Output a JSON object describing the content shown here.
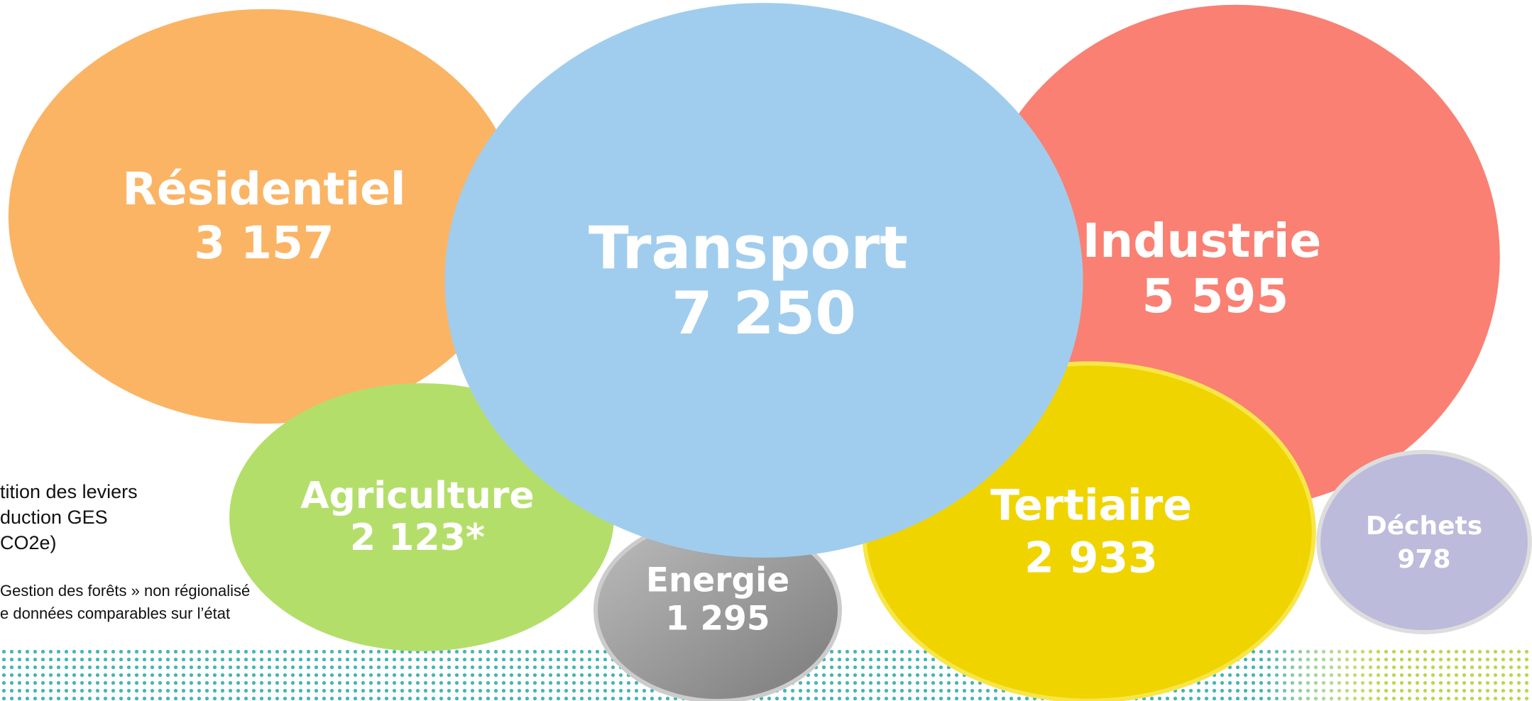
{
  "chart_data": {
    "type": "bubble",
    "categories": [
      "Résidentiel",
      "Agriculture",
      "Industrie",
      "Déchets",
      "Energie",
      "Tertiaire",
      "Transport"
    ],
    "values": [
      3157,
      2123,
      5595,
      978,
      1295,
      2933,
      7250
    ],
    "value_labels": [
      "3 157",
      "2 123*",
      "5 595",
      "978",
      "1 295",
      "2 933",
      "7 250"
    ],
    "colors": [
      "#fbb464",
      "#b4de6a",
      "#f98073",
      "#bcbbdc",
      "#9a9a9a",
      "#f0d400",
      "#a0cdee"
    ],
    "legend_lines": [
      "tition des leviers",
      "duction GES",
      "CO2e)"
    ],
    "notes": [
      "Gestion des forêts » non régionalisé",
      "e données comparables sur l’état"
    ]
  }
}
